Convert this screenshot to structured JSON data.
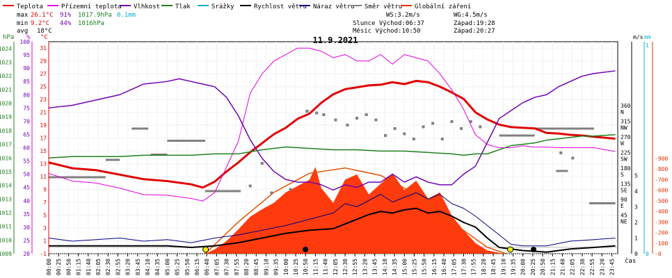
{
  "legend": [
    {
      "label": "Teplota",
      "color": "#e00000"
    },
    {
      "label": "Přízemní teplota",
      "color": "#e000e0"
    },
    {
      "label": "Vlhkost",
      "color": "#7000b0"
    },
    {
      "label": "Tlak",
      "color": "#208020"
    },
    {
      "label": "Srážky",
      "color": "#00b0d0"
    },
    {
      "label": "Rychlost větru",
      "color": "#000000"
    },
    {
      "label": "Náraz větru",
      "color": "#000080"
    },
    {
      "label": "Směr větru",
      "color": "#808080"
    },
    {
      "label": "Globální záření",
      "color": "#e03000"
    }
  ],
  "stats": {
    "max": {
      "label": "max",
      "temp": "26.1°C",
      "hum": "91%",
      "press": "1017.9hPa",
      "rain": "0.1mm"
    },
    "min": {
      "label": "min",
      "temp": "9.2°C",
      "hum": "44%",
      "press": "1016hPa"
    },
    "avg": {
      "label": "avg",
      "temp": "18°C"
    }
  },
  "info": {
    "ws": "WS:3.2m/s",
    "wg": "WG:4.5m/s",
    "sun": "Slunce Východ:06:37",
    "sunset": "Západ:19:28",
    "moon": "Měsíc  Východ:10:50",
    "moonset": "Západ:20:27"
  },
  "title": "11.9.2021",
  "xlabel": "čas",
  "chart_data": {
    "type": "line",
    "title": "11.9.2021",
    "x_ticks": [
      "00:00",
      "00:25",
      "00:50",
      "01:15",
      "01:40",
      "02:05",
      "02:30",
      "02:55",
      "03:20",
      "03:45",
      "04:10",
      "04:35",
      "05:00",
      "05:25",
      "05:50",
      "06:15",
      "06:40",
      "07:05",
      "07:30",
      "07:55",
      "08:20",
      "08:45",
      "09:10",
      "09:35",
      "10:00",
      "10:25",
      "10:50",
      "11:15",
      "11:40",
      "12:05",
      "12:30",
      "12:55",
      "13:20",
      "13:45",
      "14:10",
      "14:35",
      "15:00",
      "15:25",
      "15:50",
      "16:15",
      "16:40",
      "17:05",
      "17:30",
      "17:55",
      "18:20",
      "18:45",
      "19:10",
      "19:35",
      "20:00",
      "20:25",
      "20:50",
      "21:15",
      "21:40",
      "22:05",
      "22:30",
      "22:55",
      "23:20",
      "23:45"
    ],
    "axes": {
      "pressure": {
        "unit": "hPa",
        "ticks": [
          "1024",
          "1023",
          "1022",
          "1021",
          "1020",
          "1019",
          "1018",
          "1017",
          "1016",
          "1015",
          "1014",
          "1013",
          "1012",
          "1011",
          "1010",
          "1009"
        ],
        "range": [
          1009,
          1024.5
        ]
      },
      "humidity": {
        "unit": "%",
        "ticks": [
          "100",
          "95",
          "90",
          "85",
          "80",
          "75",
          "70",
          "65",
          "60",
          "55",
          "50",
          "45",
          "40",
          "35",
          "30",
          "25",
          "20"
        ],
        "range": [
          20,
          100
        ]
      },
      "temperature": {
        "unit": "°C",
        "ticks": [
          "31",
          "29",
          "27",
          "25",
          "23",
          "21",
          "19",
          "17",
          "15",
          "13",
          "11",
          "9",
          "7",
          "5",
          "3",
          "1",
          "-1"
        ],
        "range": [
          -1,
          32
        ]
      },
      "wind_dir": {
        "ticks": [
          {
            "deg": "360",
            "dir": "N"
          },
          {
            "deg": "315",
            "dir": "NW"
          },
          {
            "deg": "270",
            "dir": "W"
          },
          {
            "deg": "225",
            "dir": "SW"
          },
          {
            "deg": "180",
            "dir": "S"
          },
          {
            "deg": "135",
            "dir": "SE"
          },
          {
            "deg": "90",
            "dir": "E"
          },
          {
            "deg": "45",
            "dir": "NE"
          }
        ]
      },
      "wind_speed": {
        "unit": "m/s",
        "ticks": [
          "5",
          "4",
          "3",
          "2",
          "1",
          "0"
        ],
        "range": [
          0,
          5
        ]
      },
      "rain": {
        "unit": "mm",
        "ticks": [
          "1",
          "0"
        ]
      },
      "radiation": {
        "ticks": [
          "900",
          "800",
          "700",
          "600",
          "500",
          "400",
          "300",
          "200",
          "100",
          "0"
        ],
        "range": [
          0,
          900
        ]
      }
    },
    "series": [
      {
        "name": "Teplota",
        "axis": "temperature",
        "x": [
          0,
          1,
          2,
          3,
          4,
          5,
          6,
          6.5,
          7,
          7.5,
          8,
          8.5,
          9,
          9.5,
          10,
          10.5,
          11,
          11.5,
          12,
          12.5,
          13,
          13.5,
          14,
          14.5,
          15,
          15.5,
          16,
          16.5,
          17,
          17.5,
          18,
          18.5,
          19,
          19.5,
          20,
          20.5,
          21,
          21.5,
          22,
          22.5,
          23,
          23.9
        ],
        "y": [
          13.2,
          12.3,
          12.0,
          11.3,
          10.6,
          10.3,
          9.8,
          9.3,
          10.2,
          11.8,
          13.2,
          14.8,
          16.2,
          17.6,
          18.6,
          20.0,
          20.8,
          22.5,
          23.8,
          24.6,
          24.9,
          25.2,
          25.3,
          25.7,
          25.4,
          25.9,
          25.7,
          25.0,
          24.1,
          23.1,
          21.0,
          19.9,
          19.1,
          18.7,
          18.6,
          18.5,
          17.8,
          17.7,
          17.5,
          17.4,
          17.2,
          16.9
        ]
      },
      {
        "name": "Přízemní teplota",
        "axis": "temperature",
        "x": [
          0,
          1,
          2,
          3,
          4,
          5,
          6,
          6.5,
          7,
          7.5,
          8,
          8.5,
          9,
          9.5,
          10,
          10.5,
          11,
          11.5,
          12,
          12.5,
          13,
          13.5,
          14,
          14.5,
          15,
          15.5,
          16,
          16.5,
          17,
          17.5,
          18,
          18.5,
          19,
          19.5,
          20,
          20.5,
          21,
          21.5,
          22,
          22.5,
          23,
          23.9
        ],
        "y": [
          11.5,
          10.3,
          10.0,
          9.2,
          8.2,
          8.1,
          7.6,
          7.2,
          8.5,
          12.5,
          16.5,
          24.0,
          27.0,
          29.0,
          30.0,
          31.0,
          31.0,
          30.5,
          29.5,
          30.0,
          29.0,
          29.0,
          30.0,
          28.5,
          30.0,
          29.5,
          29.0,
          27.0,
          24.5,
          21.5,
          17.5,
          16.0,
          15.5,
          15.5,
          15.8,
          15.6,
          15.6,
          15.5,
          15.5,
          15.5,
          15.5,
          14.9
        ]
      },
      {
        "name": "Vlhkost",
        "axis": "humidity",
        "x": [
          0,
          1,
          2,
          3,
          4,
          5,
          5.5,
          6,
          6.5,
          7,
          7.5,
          8,
          8.5,
          9,
          9.5,
          10,
          10.5,
          11,
          11.5,
          12,
          12.5,
          13,
          13.5,
          14,
          14.5,
          15,
          15.5,
          16,
          16.5,
          17,
          17.5,
          18,
          18.5,
          19,
          19.5,
          20,
          20.5,
          21,
          21.5,
          22,
          22.5,
          23,
          23.9
        ],
        "y": [
          75,
          76,
          78,
          80,
          84,
          85,
          86,
          85,
          84,
          83,
          79,
          72,
          63,
          56,
          51,
          48,
          47,
          47,
          46,
          44,
          46,
          45,
          47,
          47,
          50,
          47,
          49,
          47,
          46,
          46,
          50,
          53,
          62,
          71,
          74,
          77,
          79,
          80,
          83,
          85,
          87,
          88,
          89
        ]
      },
      {
        "name": "Tlak",
        "axis": "pressure",
        "x": [
          0,
          1,
          2,
          3,
          4,
          5,
          6,
          7,
          8,
          9,
          10,
          11,
          12,
          13,
          14,
          15,
          16,
          17,
          17.5,
          18,
          18.5,
          19,
          19.5,
          20,
          20.5,
          21,
          21.5,
          22,
          22.5,
          23,
          23.9
        ],
        "y": [
          1016.0,
          1016.1,
          1016.1,
          1016.1,
          1016.2,
          1016.2,
          1016.2,
          1016.3,
          1016.3,
          1016.6,
          1016.8,
          1016.7,
          1016.6,
          1016.6,
          1016.5,
          1016.5,
          1016.4,
          1016.3,
          1016.2,
          1016.3,
          1016.3,
          1016.6,
          1016.9,
          1017.0,
          1017.1,
          1017.3,
          1017.4,
          1017.5,
          1017.6,
          1017.6,
          1017.7
        ]
      },
      {
        "name": "Rychlost větru",
        "axis": "wind_speed",
        "x": [
          0,
          1,
          2,
          3,
          4,
          5,
          6,
          7,
          8,
          9,
          10,
          11,
          12,
          13,
          13.5,
          14,
          14.5,
          15,
          15.5,
          16,
          16.5,
          17,
          17.5,
          18,
          18.5,
          19,
          20,
          21,
          22,
          23,
          23.9
        ],
        "y": [
          0.5,
          0.5,
          0.5,
          0.5,
          0.5,
          0.5,
          0.4,
          0.5,
          0.7,
          1.0,
          1.3,
          1.5,
          1.6,
          2.2,
          2.5,
          2.7,
          2.6,
          2.8,
          2.9,
          2.6,
          2.7,
          2.4,
          2.0,
          1.7,
          1.0,
          0.4,
          0.2,
          0.1,
          0.3,
          0.4,
          0.5
        ]
      },
      {
        "name": "Náraz větru",
        "axis": "wind_speed",
        "x": [
          0,
          1,
          2,
          3,
          4,
          5,
          6,
          7,
          8,
          9,
          10,
          11,
          12,
          12.5,
          13,
          13.5,
          14,
          14.5,
          15,
          15.5,
          16,
          16.5,
          17,
          17.5,
          18,
          18.5,
          19,
          19.5,
          20,
          21,
          22,
          23,
          23.9
        ],
        "y": [
          1.0,
          0.8,
          0.9,
          1.0,
          0.8,
          0.9,
          0.7,
          1.0,
          1.2,
          1.5,
          1.8,
          2.2,
          2.6,
          3.2,
          3.0,
          3.4,
          3.8,
          3.3,
          3.6,
          3.9,
          3.5,
          3.8,
          3.2,
          2.9,
          2.4,
          1.8,
          1.2,
          0.6,
          0.5,
          0.5,
          0.8,
          0.9,
          1.0
        ]
      },
      {
        "name": "Globální záření",
        "axis": "radiation",
        "x": [
          6.6,
          7,
          7.5,
          8,
          8.5,
          9,
          9.5,
          10,
          10.5,
          11,
          11.25,
          11.5,
          12,
          12.5,
          13,
          13.5,
          14,
          14.5,
          15,
          15.5,
          16,
          16.5,
          17,
          17.5,
          18,
          18.5,
          19.2
        ],
        "y": [
          0,
          40,
          120,
          230,
          350,
          420,
          480,
          580,
          640,
          700,
          820,
          620,
          480,
          700,
          750,
          560,
          660,
          760,
          600,
          690,
          520,
          580,
          360,
          220,
          100,
          30,
          0
        ]
      }
    ],
    "globalni_zareni_max": {
      "name": "clear-sky",
      "axis": "radiation",
      "x": [
        6.6,
        8,
        9.5,
        11,
        12.5,
        14,
        15.5,
        17,
        18.5,
        19.3
      ],
      "y": [
        0,
        300,
        580,
        760,
        810,
        740,
        560,
        300,
        60,
        0
      ]
    },
    "wind_direction_segments": [
      {
        "from": 0.0,
        "to": 2.4,
        "deg": 160
      },
      {
        "from": 2.4,
        "to": 3.0,
        "deg": 210
      },
      {
        "from": 3.5,
        "to": 4.2,
        "deg": 300
      },
      {
        "from": 4.3,
        "to": 5.0,
        "deg": 225
      },
      {
        "from": 5.0,
        "to": 6.6,
        "deg": 265
      },
      {
        "from": 6.6,
        "to": 8.1,
        "deg": 120
      },
      {
        "from": 19.0,
        "to": 20.5,
        "deg": 280
      },
      {
        "from": 20.5,
        "to": 23.0,
        "deg": 300
      },
      {
        "from": 21.4,
        "to": 21.9,
        "deg": 178
      },
      {
        "from": 22.8,
        "to": 23.9,
        "deg": 85
      }
    ],
    "wind_direction_points": {
      "x": [
        8.5,
        9.0,
        9.4,
        10.2,
        10.9,
        11.3,
        11.6,
        12.1,
        12.6,
        13.0,
        13.4,
        13.8,
        14.2,
        14.6,
        15.0,
        15.4,
        15.8,
        16.2,
        16.6,
        17.0,
        17.4,
        17.8,
        18.2,
        21.6,
        22.1
      ],
      "y": [
        135,
        200,
        115,
        125,
        350,
        345,
        340,
        325,
        310,
        330,
        340,
        325,
        280,
        300,
        285,
        270,
        305,
        315,
        270,
        320,
        300,
        320,
        305,
        230,
        215
      ]
    }
  }
}
